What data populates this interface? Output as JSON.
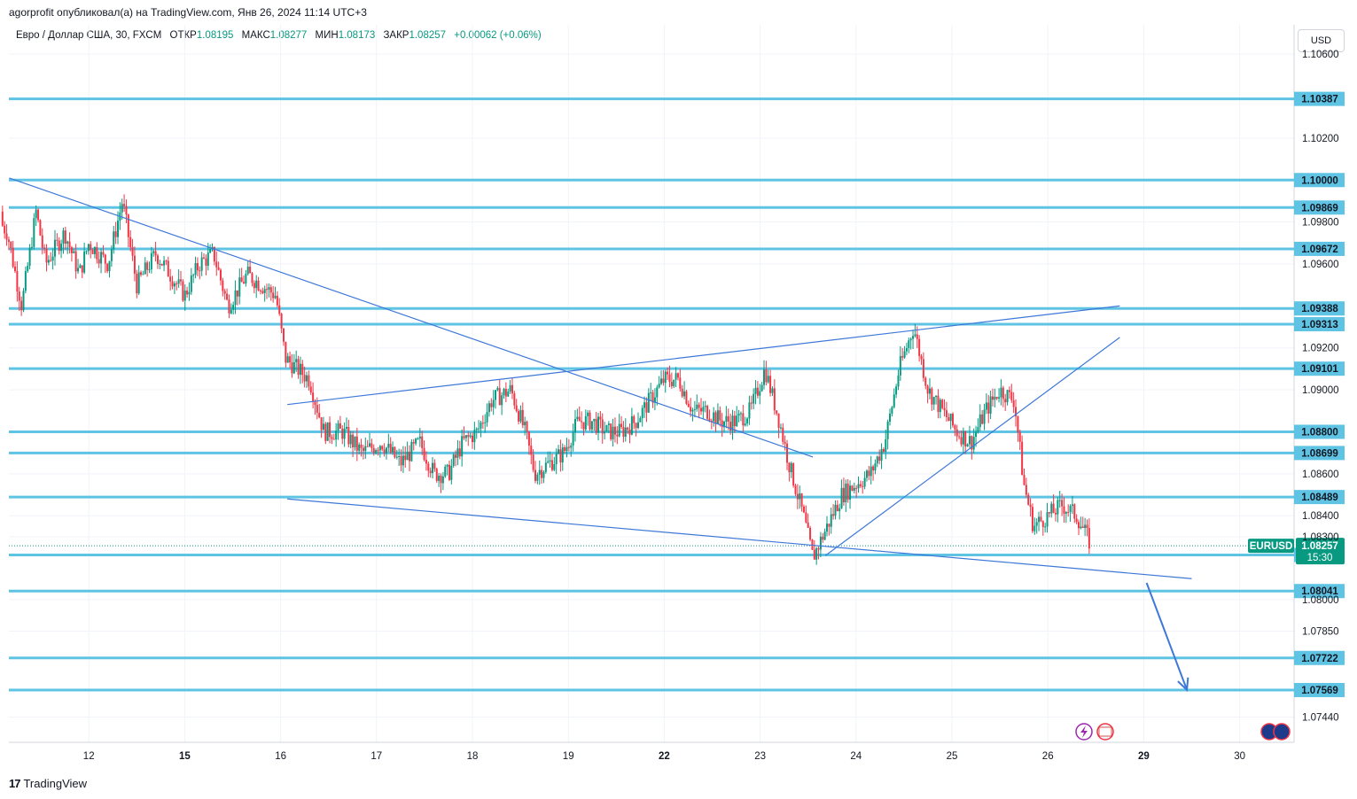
{
  "publisher_line": "agorprofit опубликовал(а) на TradingView.com, Янв 26, 2024 11:14 UTC+3",
  "symbol_line": {
    "name": "Евро / Доллар США, 30, FXCM",
    "open_label": "ОТКР",
    "open": "1.08195",
    "high_label": "МАКС",
    "high": "1.08277",
    "low_label": "МИН",
    "low": "1.08173",
    "close_label": "ЗАКР",
    "close": "1.08257",
    "change": "+0.00062 (+0.06%)"
  },
  "currency_button": "USD",
  "brand": "TradingView",
  "colors": {
    "up": "#089981",
    "down": "#f23645",
    "level_line": "#5fc3e4",
    "level_label_bg": "#5fc3e4",
    "trend_line": "#3d78d8",
    "price_label_bg": "#089981"
  },
  "chart_data": {
    "type": "candlestick",
    "symbol": "EURUSD",
    "timeframe": "30",
    "ylim": [
      1.0732,
      1.1074
    ],
    "y_ticks": [
      "1.10600",
      "1.10200",
      "1.09800",
      "1.09600",
      "1.09200",
      "1.09000",
      "1.08600",
      "1.08400",
      "1.08300",
      "1.08000",
      "1.07850",
      "1.07440"
    ],
    "x_ticks": [
      {
        "label": "12",
        "day": 1,
        "bold": false
      },
      {
        "label": "15",
        "day": 2,
        "bold": true
      },
      {
        "label": "16",
        "day": 3,
        "bold": false
      },
      {
        "label": "17",
        "day": 4,
        "bold": false
      },
      {
        "label": "18",
        "day": 5,
        "bold": false
      },
      {
        "label": "19",
        "day": 6,
        "bold": false
      },
      {
        "label": "22",
        "day": 7,
        "bold": true
      },
      {
        "label": "23",
        "day": 8,
        "bold": false
      },
      {
        "label": "24",
        "day": 9,
        "bold": false
      },
      {
        "label": "25",
        "day": 10,
        "bold": false
      },
      {
        "label": "26",
        "day": 11,
        "bold": false
      },
      {
        "label": "29",
        "day": 12,
        "bold": true
      },
      {
        "label": "30",
        "day": 13,
        "bold": false
      }
    ],
    "levels": [
      "1.10387",
      "1.10000",
      "1.09869",
      "1.09672",
      "1.09388",
      "1.09313",
      "1.09101",
      "1.08800",
      "1.08699",
      "1.08489",
      "1.08213",
      "1.08041",
      "1.07722",
      "1.07569"
    ],
    "current_price": {
      "symbol": "EURUSD",
      "price": "1.08257",
      "countdown": "15:30"
    },
    "path": [
      [
        0.0,
        1.0985
      ],
      [
        0.15,
        1.0975
      ],
      [
        0.3,
        1.094
      ],
      [
        0.45,
        1.0985
      ],
      [
        0.55,
        1.096
      ],
      [
        0.75,
        1.0975
      ],
      [
        0.9,
        1.0955
      ],
      [
        1.0,
        1.097
      ],
      [
        1.2,
        1.096
      ],
      [
        1.35,
        1.099
      ],
      [
        1.5,
        1.095
      ],
      [
        1.7,
        1.0965
      ],
      [
        1.85,
        1.0955
      ],
      [
        2.0,
        1.0945
      ],
      [
        2.15,
        1.096
      ],
      [
        2.3,
        1.0965
      ],
      [
        2.45,
        1.094
      ],
      [
        2.65,
        1.0955
      ],
      [
        2.8,
        1.095
      ],
      [
        2.95,
        1.0945
      ],
      [
        3.05,
        1.0915
      ],
      [
        3.3,
        1.0905
      ],
      [
        3.45,
        1.088
      ],
      [
        3.65,
        1.088
      ],
      [
        3.85,
        1.087
      ],
      [
        4.05,
        1.0875
      ],
      [
        4.25,
        1.0865
      ],
      [
        4.45,
        1.0875
      ],
      [
        4.6,
        1.086
      ],
      [
        4.75,
        1.086
      ],
      [
        4.9,
        1.0875
      ],
      [
        5.05,
        1.088
      ],
      [
        5.2,
        1.0895
      ],
      [
        5.4,
        1.09
      ],
      [
        5.55,
        1.088
      ],
      [
        5.65,
        1.086
      ],
      [
        5.8,
        1.0865
      ],
      [
        5.95,
        1.087
      ],
      [
        6.1,
        1.0885
      ],
      [
        6.25,
        1.0885
      ],
      [
        6.4,
        1.088
      ],
      [
        6.55,
        1.088
      ],
      [
        6.7,
        1.0885
      ],
      [
        6.85,
        1.0895
      ],
      [
        7.0,
        1.0905
      ],
      [
        7.15,
        1.0905
      ],
      [
        7.3,
        1.089
      ],
      [
        7.45,
        1.089
      ],
      [
        7.6,
        1.0885
      ],
      [
        7.75,
        1.0885
      ],
      [
        7.9,
        1.089
      ],
      [
        8.05,
        1.091
      ],
      [
        8.2,
        1.0885
      ],
      [
        8.3,
        1.0865
      ],
      [
        8.45,
        1.084
      ],
      [
        8.55,
        1.082
      ],
      [
        8.7,
        1.0835
      ],
      [
        8.85,
        1.085
      ],
      [
        9.0,
        1.0855
      ],
      [
        9.15,
        1.086
      ],
      [
        9.3,
        1.0875
      ],
      [
        9.45,
        1.091
      ],
      [
        9.6,
        1.093
      ],
      [
        9.75,
        1.09
      ],
      [
        9.9,
        1.089
      ],
      [
        10.05,
        1.088
      ],
      [
        10.2,
        1.0875
      ],
      [
        10.35,
        1.089
      ],
      [
        10.5,
        1.09
      ],
      [
        10.65,
        1.0895
      ],
      [
        10.75,
        1.0855
      ],
      [
        10.85,
        1.0835
      ],
      [
        11.0,
        1.084
      ],
      [
        11.15,
        1.0845
      ],
      [
        11.3,
        1.084
      ],
      [
        11.45,
        1.0826
      ]
    ]
  }
}
